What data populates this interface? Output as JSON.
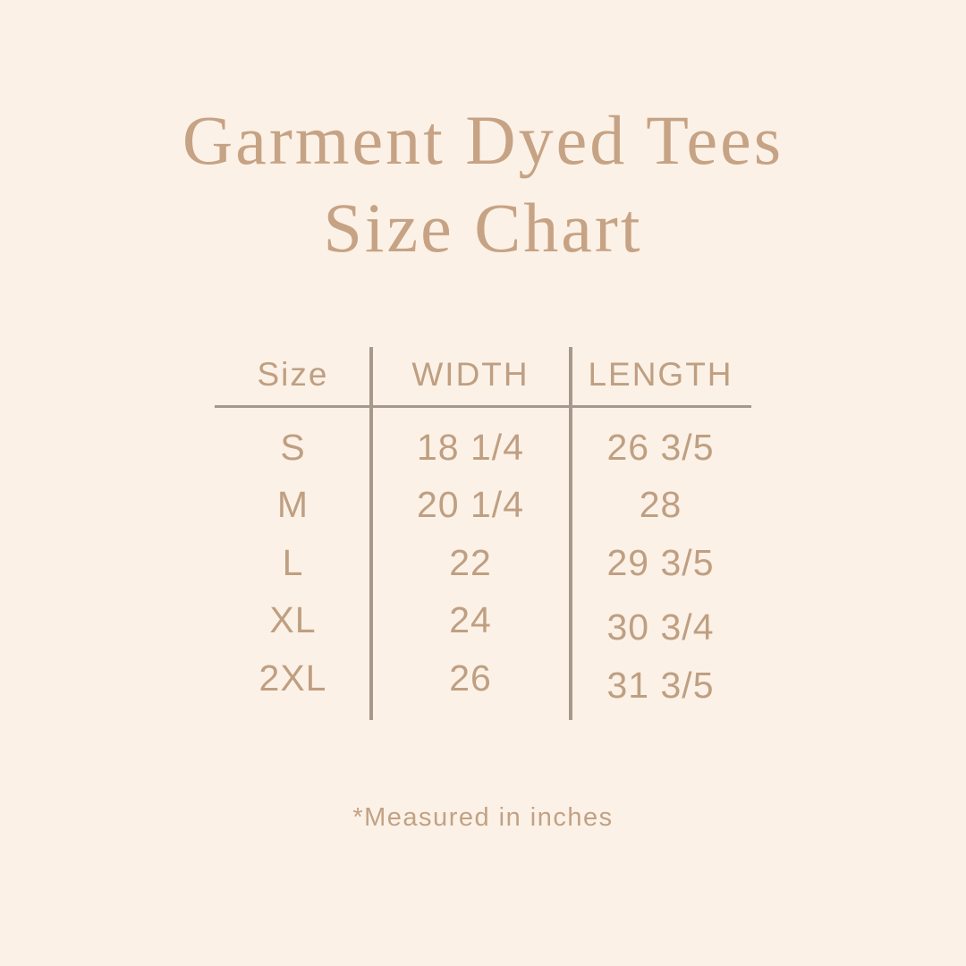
{
  "page": {
    "background_color": "#fcf1e6",
    "accent_text_color": "#c6a385",
    "table_text_color": "#bf9f82",
    "line_color": "#a6988b"
  },
  "title": {
    "line1": "Garment Dyed Tees",
    "line2": "Size Chart"
  },
  "table": {
    "headers": [
      "Size",
      "WIDTH",
      "LENGTH"
    ],
    "rows": [
      {
        "size": "S",
        "width": "18 1/4",
        "length": "26 3/5"
      },
      {
        "size": "M",
        "width": "20 1/4",
        "length": "28"
      },
      {
        "size": "L",
        "width": "22",
        "length": "29 3/5"
      },
      {
        "size": "XL",
        "width": "24",
        "length": "30 3/4"
      },
      {
        "size": "2XL",
        "width": "26",
        "length": "31 3/5"
      }
    ],
    "units_note": "*Measured in inches"
  }
}
